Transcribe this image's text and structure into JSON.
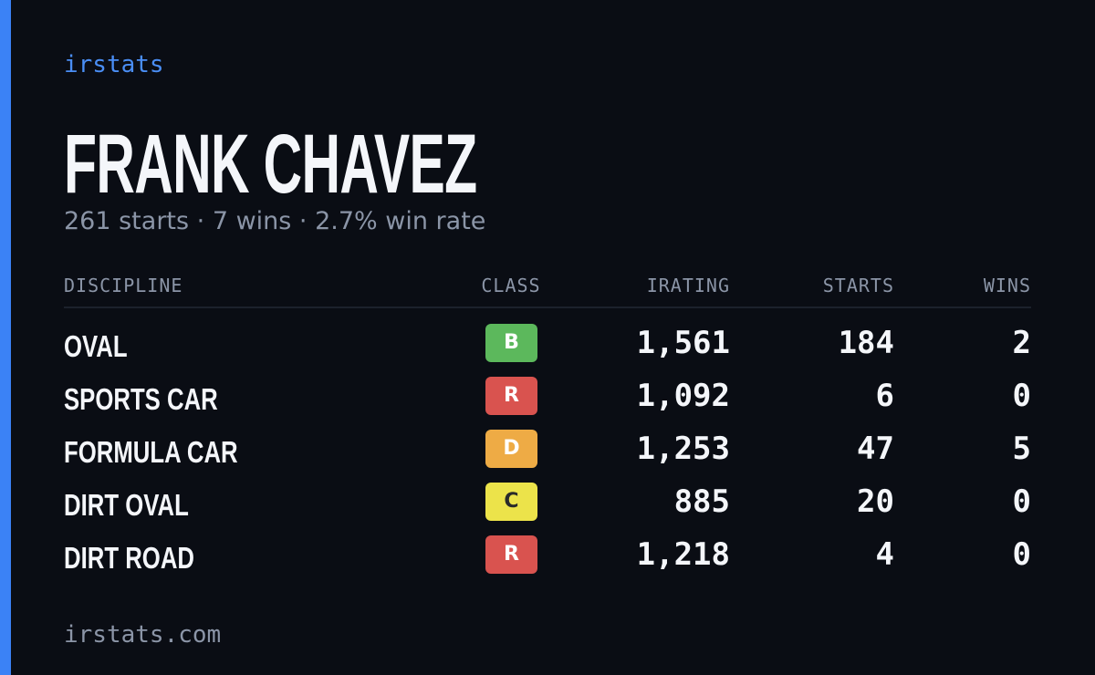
{
  "brand": "irstats",
  "profile": {
    "name": "FRANK CHAVEZ",
    "summary": "261 starts · 7 wins · 2.7% win rate"
  },
  "table": {
    "headers": [
      "DISCIPLINE",
      "CLASS",
      "IRATING",
      "STARTS",
      "WINS"
    ],
    "rows": [
      {
        "discipline": "OVAL",
        "class": "B",
        "class_color": "#5cb85c",
        "irating": "1,561",
        "starts": "184",
        "wins": "2"
      },
      {
        "discipline": "SPORTS CAR",
        "class": "R",
        "class_color": "#d9534f",
        "irating": "1,092",
        "starts": "6",
        "wins": "0"
      },
      {
        "discipline": "FORMULA CAR",
        "class": "D",
        "class_color": "#eeab45",
        "irating": "1,253",
        "starts": "47",
        "wins": "5"
      },
      {
        "discipline": "DIRT OVAL",
        "class": "C",
        "class_color": "#ece34a",
        "irating": "885",
        "starts": "20",
        "wins": "0"
      },
      {
        "discipline": "DIRT ROAD",
        "class": "R",
        "class_color": "#d9534f",
        "irating": "1,218",
        "starts": "4",
        "wins": "0"
      }
    ]
  },
  "footer": "irstats.com"
}
